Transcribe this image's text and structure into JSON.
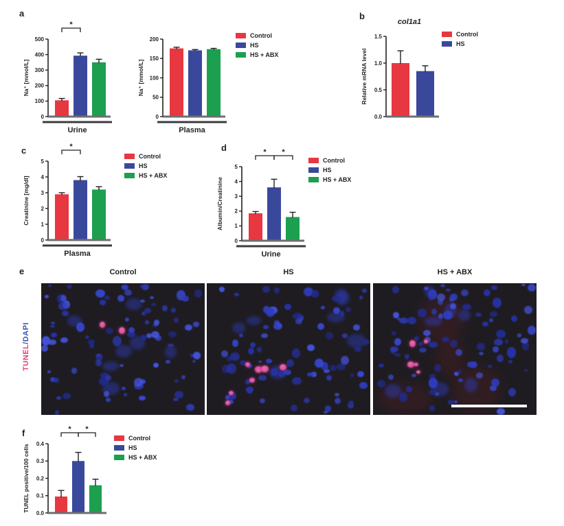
{
  "figure_background": "#FFFFFF",
  "legend": {
    "labels": [
      "Control",
      "HS",
      "HS + ABX"
    ],
    "colors": [
      "#E73740",
      "#3A489C",
      "#1C9F4F"
    ]
  },
  "palette": {
    "axis": "#231F20",
    "baseline_gray": "#6D6E71",
    "underline_dark": "#3B3B3D",
    "micro_background": "#1E1C21",
    "dapi_blues": [
      "#2732A8",
      "#2F3DBE",
      "#3948D2",
      "#4554DE",
      "#222B8F"
    ],
    "tunel_pink": "#DD4D9E",
    "tunel_pink_bright": "#F571B8",
    "scalebar": "#FFFFFF",
    "label_tunel_pink": "#E8417C",
    "label_dapi_blue": "#3E53B5"
  },
  "panels": {
    "a": {
      "letter": "a"
    },
    "b": {
      "letter": "b",
      "chart_title": "col1a1"
    },
    "c": {
      "letter": "c"
    },
    "d": {
      "letter": "d"
    },
    "e": {
      "letter": "e"
    },
    "f": {
      "letter": "f"
    }
  },
  "microscopy": {
    "row_label": {
      "tunel": "TUNEL",
      "dapi": "/DAPI"
    },
    "images": [
      {
        "title": "Control",
        "tunel_positive_cells": 2
      },
      {
        "title": "HS",
        "tunel_positive_cells": 8
      },
      {
        "title": "HS + ABX",
        "tunel_positive_cells": 5
      }
    ],
    "scalebar_image_index": 2
  },
  "chart_data": [
    {
      "id": "a_urine",
      "type": "bar",
      "panel": "a",
      "categories": [
        "Control",
        "HS",
        "HS + ABX"
      ],
      "values": [
        105,
        393,
        350
      ],
      "errors": [
        12,
        18,
        20
      ],
      "ylabel": "Na⁺ [mmol/L]",
      "xlabel": "Urine",
      "ylim": [
        0,
        500
      ],
      "yticks": [
        0,
        100,
        200,
        300,
        400,
        500
      ],
      "ytick_labels": [
        "0",
        "100",
        "200",
        "300",
        "400",
        "500"
      ],
      "sig_brackets": [
        {
          "from": 0,
          "to": 1,
          "label": "*"
        }
      ],
      "grid": false,
      "legend_position": "right"
    },
    {
      "id": "a_plasma",
      "type": "bar",
      "panel": "a",
      "categories": [
        "Control",
        "HS",
        "HS + ABX"
      ],
      "values": [
        176,
        171,
        174
      ],
      "errors": [
        3,
        2,
        2
      ],
      "ylabel": "Na⁺ [mmol/L]",
      "xlabel": "Plasma",
      "ylim": [
        0,
        200
      ],
      "yticks": [
        0,
        50,
        100,
        150,
        200
      ],
      "ytick_labels": [
        "0",
        "50",
        "100",
        "150",
        "200"
      ],
      "sig_brackets": [],
      "grid": false,
      "legend_position": "right"
    },
    {
      "id": "b_col1a1",
      "type": "bar",
      "panel": "b",
      "title": "col1a1",
      "categories": [
        "Control",
        "HS"
      ],
      "values": [
        1.0,
        0.85
      ],
      "errors": [
        0.23,
        0.1
      ],
      "ylabel": "Relative mRNA level",
      "xlabel": "",
      "ylim": [
        0,
        1.5
      ],
      "yticks": [
        0,
        0.5,
        1.0,
        1.5
      ],
      "ytick_labels": [
        "0.0",
        "0.5",
        "1.0",
        "1.5"
      ],
      "sig_brackets": [],
      "grid": false,
      "legend_position": "right"
    },
    {
      "id": "c_creatinine",
      "type": "bar",
      "panel": "c",
      "categories": [
        "Control",
        "HS",
        "HS + ABX"
      ],
      "values": [
        2.9,
        3.8,
        3.2
      ],
      "errors": [
        0.1,
        0.22,
        0.18
      ],
      "ylabel": "Creatinine [mg/dl]",
      "xlabel": "Plasma",
      "ylim": [
        0,
        5
      ],
      "yticks": [
        0,
        1,
        2,
        3,
        4,
        5
      ],
      "ytick_labels": [
        "0",
        "1",
        "2",
        "3",
        "4",
        "5"
      ],
      "sig_brackets": [
        {
          "from": 0,
          "to": 1,
          "label": "*"
        }
      ],
      "grid": false,
      "legend_position": "right"
    },
    {
      "id": "d_albumin",
      "type": "bar",
      "panel": "d",
      "categories": [
        "Control",
        "HS",
        "HS + ABX"
      ],
      "values": [
        1.85,
        3.6,
        1.6
      ],
      "errors": [
        0.12,
        0.55,
        0.32
      ],
      "ylabel": "Albumin/Creatinine",
      "xlabel": "Urine",
      "ylim": [
        0,
        5
      ],
      "yticks": [
        0,
        1,
        2,
        3,
        4,
        5
      ],
      "ytick_labels": [
        "0",
        "1",
        "2",
        "3",
        "4",
        "5"
      ],
      "sig_brackets": [
        {
          "from": 0,
          "to": 1,
          "label": "*"
        },
        {
          "from": 1,
          "to": 2,
          "label": "*"
        }
      ],
      "grid": false,
      "legend_position": "right"
    },
    {
      "id": "f_tunel",
      "type": "bar",
      "panel": "f",
      "categories": [
        "Control",
        "HS",
        "HS + ABX"
      ],
      "values": [
        0.095,
        0.3,
        0.16
      ],
      "errors": [
        0.035,
        0.05,
        0.035
      ],
      "ylabel": "TUNEL positive/100 cells",
      "xlabel": "",
      "ylim": [
        0,
        0.4
      ],
      "yticks": [
        0,
        0.1,
        0.2,
        0.3,
        0.4
      ],
      "ytick_labels": [
        "0.0",
        "0.1",
        "0.2",
        "0.3",
        "0.4"
      ],
      "sig_brackets": [
        {
          "from": 0,
          "to": 1,
          "label": "*"
        },
        {
          "from": 1,
          "to": 2,
          "label": "*"
        }
      ],
      "grid": false,
      "legend_position": "right"
    }
  ]
}
